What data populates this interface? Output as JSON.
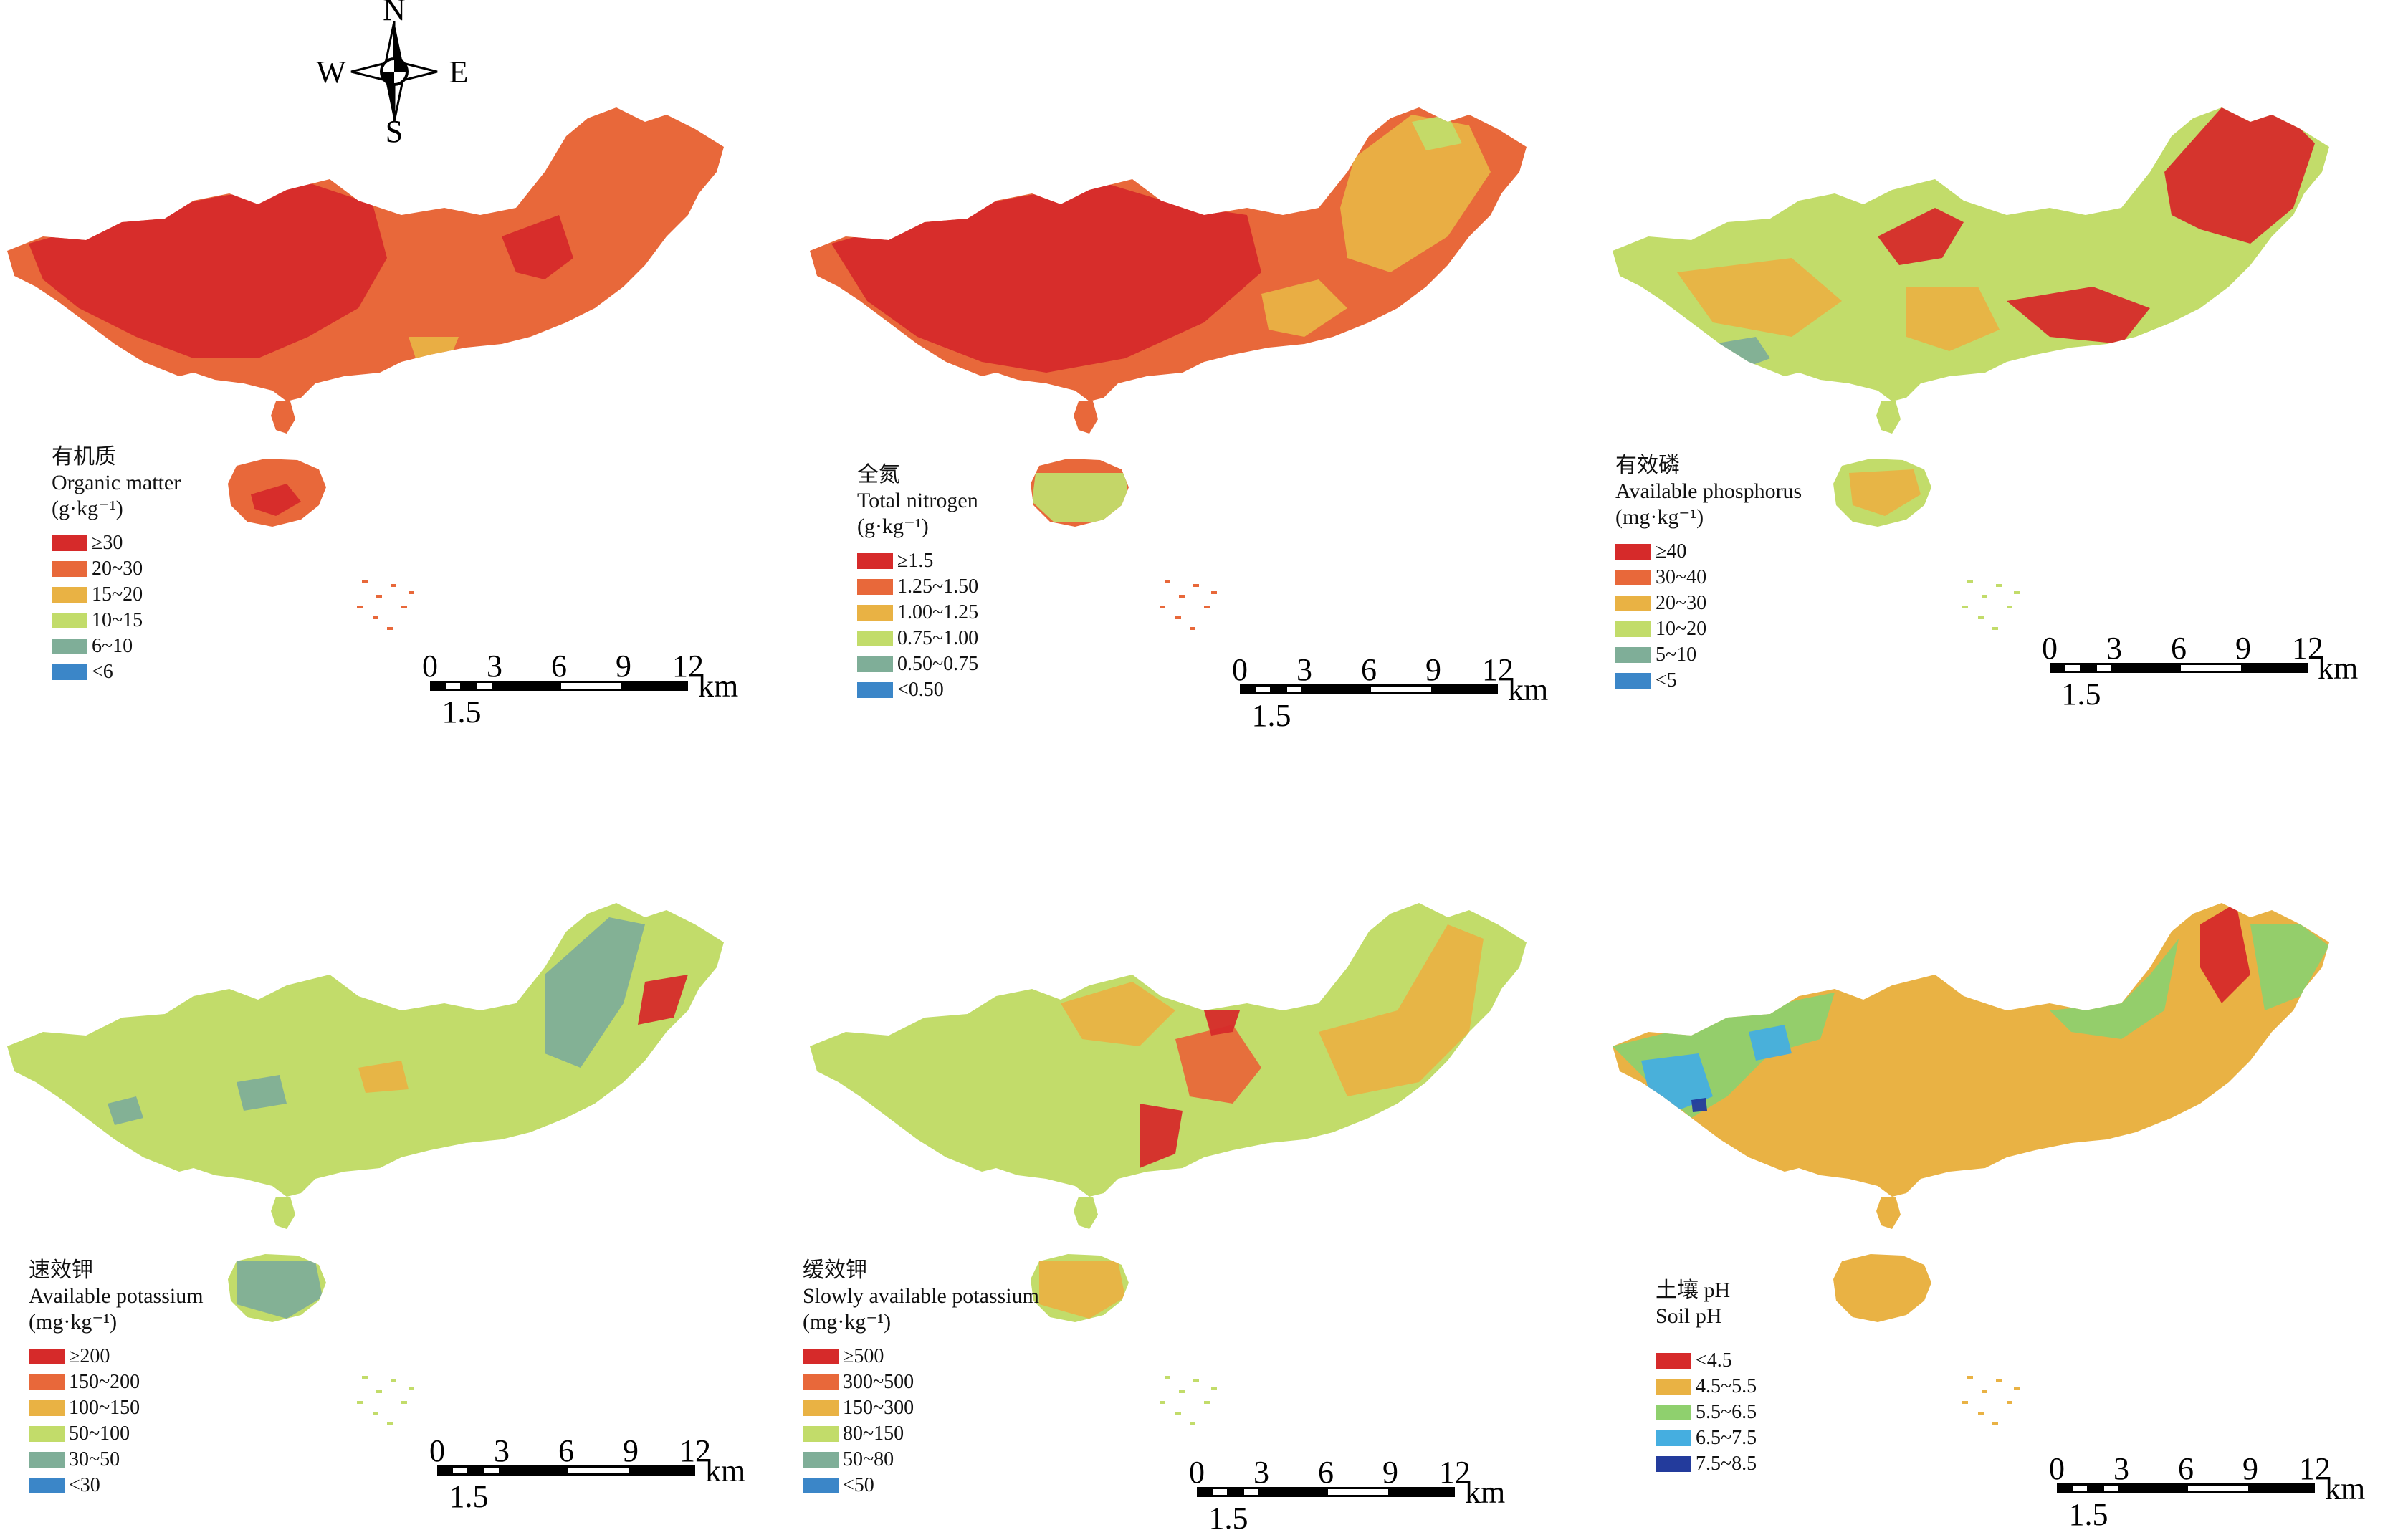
{
  "compass": {
    "north": "N",
    "south": "S",
    "east": "E",
    "west": "W"
  },
  "scale_bar": {
    "ticks": [
      "0",
      "3",
      "6",
      "9",
      "12"
    ],
    "unit": "km",
    "minor_tick": "1.5"
  },
  "colors": {
    "red": "#d62a2a",
    "orange": "#e8683a",
    "yellow": "#e9b244",
    "lightgreen": "#c2dc6a",
    "grayteal": "#7fae98",
    "blue": "#3b86c8",
    "green": "#8fd06e",
    "skyblue": "#45aee0",
    "navy": "#233b9c"
  },
  "panels": [
    {
      "id": "organic-matter",
      "title_cn": "有机质",
      "title_en": "Organic matter",
      "unit": "(g·kg⁻¹)",
      "base_color": "#e8683a",
      "dominant_color": "#d62a2a",
      "legend": [
        {
          "label": "≥30",
          "color": "#d62a2a"
        },
        {
          "label": "20~30",
          "color": "#e8683a"
        },
        {
          "label": "15~20",
          "color": "#e9b244"
        },
        {
          "label": "10~15",
          "color": "#c2dc6a"
        },
        {
          "label": "6~10",
          "color": "#7fae98"
        },
        {
          "label": "<6",
          "color": "#3b86c8"
        }
      ]
    },
    {
      "id": "total-nitrogen",
      "title_cn": "全氮",
      "title_en": "Total nitrogen",
      "unit": "(g·kg⁻¹)",
      "base_color": "#e8683a",
      "dominant_color": "#d62a2a",
      "legend": [
        {
          "label": "≥1.5",
          "color": "#d62a2a"
        },
        {
          "label": "1.25~1.50",
          "color": "#e8683a"
        },
        {
          "label": "1.00~1.25",
          "color": "#e9b244"
        },
        {
          "label": "0.75~1.00",
          "color": "#c2dc6a"
        },
        {
          "label": "0.50~0.75",
          "color": "#7fae98"
        },
        {
          "label": "<0.50",
          "color": "#3b86c8"
        }
      ]
    },
    {
      "id": "available-phosphorus",
      "title_cn": "有效磷",
      "title_en": "Available phosphorus",
      "unit": "(mg·kg⁻¹)",
      "base_color": "#c2dc6a",
      "dominant_color": "#e9b244",
      "legend": [
        {
          "label": "≥40",
          "color": "#d62a2a"
        },
        {
          "label": "30~40",
          "color": "#e8683a"
        },
        {
          "label": "20~30",
          "color": "#e9b244"
        },
        {
          "label": "10~20",
          "color": "#c2dc6a"
        },
        {
          "label": "5~10",
          "color": "#7fae98"
        },
        {
          "label": "<5",
          "color": "#3b86c8"
        }
      ]
    },
    {
      "id": "available-potassium",
      "title_cn": "速效钾",
      "title_en": "Available potassium",
      "unit": "(mg·kg⁻¹)",
      "base_color": "#c2dc6a",
      "dominant_color": "#7fae98",
      "legend": [
        {
          "label": "≥200",
          "color": "#d62a2a"
        },
        {
          "label": "150~200",
          "color": "#e8683a"
        },
        {
          "label": "100~150",
          "color": "#e9b244"
        },
        {
          "label": "50~100",
          "color": "#c2dc6a"
        },
        {
          "label": "30~50",
          "color": "#7fae98"
        },
        {
          "label": "<30",
          "color": "#3b86c8"
        }
      ]
    },
    {
      "id": "slowly-available-potassium",
      "title_cn": "缓效钾",
      "title_en": "Slowly available potassium",
      "unit": "(mg·kg⁻¹)",
      "base_color": "#c2dc6a",
      "dominant_color": "#e9b244",
      "legend": [
        {
          "label": "≥500",
          "color": "#d62a2a"
        },
        {
          "label": "300~500",
          "color": "#e8683a"
        },
        {
          "label": "150~300",
          "color": "#e9b244"
        },
        {
          "label": "80~150",
          "color": "#c2dc6a"
        },
        {
          "label": "50~80",
          "color": "#7fae98"
        },
        {
          "label": "<50",
          "color": "#3b86c8"
        }
      ]
    },
    {
      "id": "soil-ph",
      "title_cn": "土壤 pH",
      "title_en": "Soil pH",
      "unit": "",
      "base_color": "#e9b244",
      "dominant_color": "#8fd06e",
      "legend": [
        {
          "label": "<4.5",
          "color": "#d62a2a"
        },
        {
          "label": "4.5~5.5",
          "color": "#e9b244"
        },
        {
          "label": "5.5~6.5",
          "color": "#8fd06e"
        },
        {
          "label": "6.5~7.5",
          "color": "#45aee0"
        },
        {
          "label": "7.5~8.5",
          "color": "#233b9c"
        }
      ]
    }
  ]
}
